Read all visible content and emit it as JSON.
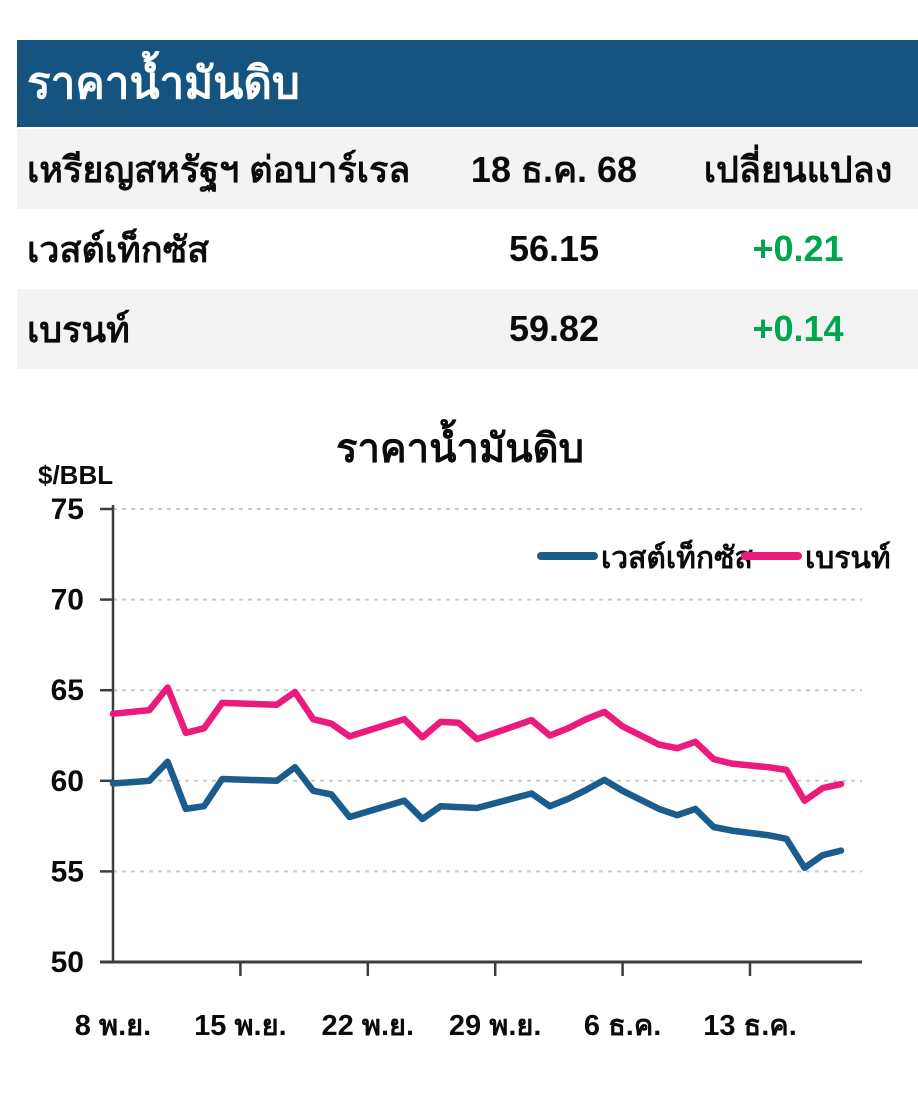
{
  "header": {
    "title": "ราคาน้ำมันดิบ"
  },
  "table": {
    "columns": {
      "unit": "เหรียญสหรัฐฯ ต่อบาร์เรล",
      "date": "18 ธ.ค. 68",
      "change": "เปลี่ยนแปลง"
    },
    "rows": [
      {
        "name": "เวสต์เท็กซัส",
        "price": "56.15",
        "change": "+0.21"
      },
      {
        "name": "เบรนท์",
        "price": "59.82",
        "change": "+0.14"
      }
    ]
  },
  "chart": {
    "title": "ราคาน้ำมันดิบ",
    "unit_label": "$/BBL"
  },
  "chart_data": {
    "type": "line",
    "title": "ราคาน้ำมันดิบ",
    "ylabel": "$/BBL",
    "ylim": [
      50,
      75
    ],
    "yticks": [
      50,
      55,
      60,
      65,
      70,
      75
    ],
    "grid": "horizontal-dotted",
    "legend_position": "top-right-inside",
    "x_unit": "days since 8 Nov BE 2568",
    "xlim": [
      0,
      41.2
    ],
    "xticks": [
      {
        "pos": 0,
        "label": "8 พ.ย."
      },
      {
        "pos": 7,
        "label": "15 พ.ย."
      },
      {
        "pos": 14,
        "label": "22 พ.ย."
      },
      {
        "pos": 21,
        "label": "29 พ.ย."
      },
      {
        "pos": 28,
        "label": "6 ธ.ค."
      },
      {
        "pos": 35,
        "label": "13 ธ.ค."
      }
    ],
    "x": [
      0,
      2,
      3,
      4,
      5,
      6,
      9,
      10,
      11,
      12,
      13,
      16,
      17,
      18,
      19,
      20,
      23,
      24,
      25,
      26,
      27,
      28,
      30,
      31,
      32,
      33,
      34,
      36,
      37,
      38,
      39,
      40
    ],
    "series": [
      {
        "name": "เวสต์เท็กซัส",
        "color": "#1B5C8D",
        "values": [
          59.85,
          60.0,
          61.05,
          58.45,
          58.6,
          60.1,
          60.0,
          60.75,
          59.45,
          59.25,
          58.0,
          58.9,
          57.9,
          58.6,
          58.55,
          58.5,
          59.3,
          58.6,
          59.0,
          59.5,
          60.05,
          59.45,
          58.45,
          58.1,
          58.45,
          57.45,
          57.25,
          57.0,
          56.8,
          55.2,
          55.9,
          56.15
        ]
      },
      {
        "name": "เบรนท์",
        "color": "#EA1B7B",
        "values": [
          63.7,
          63.9,
          65.15,
          62.65,
          62.9,
          64.3,
          64.2,
          64.9,
          63.4,
          63.15,
          62.45,
          63.4,
          62.4,
          63.25,
          63.2,
          62.3,
          63.35,
          62.5,
          62.9,
          63.4,
          63.8,
          63.0,
          62.0,
          61.8,
          62.15,
          61.2,
          60.95,
          60.75,
          60.6,
          58.9,
          59.6,
          59.82
        ]
      }
    ]
  },
  "colors": {
    "header_bg": "#155380",
    "header_text": "#FFFFFF",
    "row_alt_bg": "#F3F3F3",
    "text": "#0B0B0B",
    "positive": "#00A64F",
    "wti_line": "#1B5C8D",
    "brent_line": "#EA1B7B",
    "grid": "#C9C9C9",
    "axis": "#3D3D3D"
  }
}
